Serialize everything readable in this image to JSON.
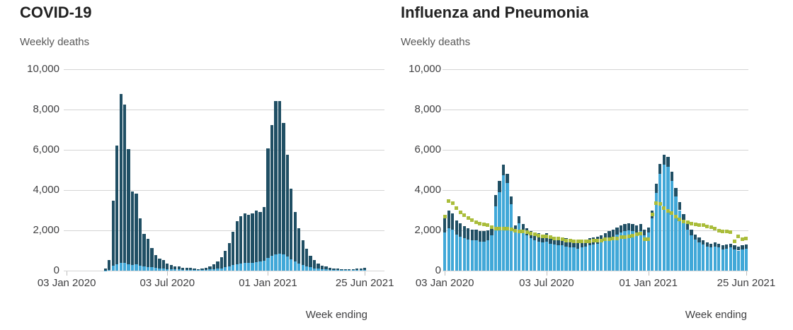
{
  "page_background": "#ffffff",
  "colors": {
    "bar_light_blue": "#41a8d8",
    "bar_dark_navy": "#204f64",
    "average_line_olive": "#aabd3b",
    "gridline": "#d4d4d4",
    "axis_text": "#3f3f41",
    "title_text": "#222222",
    "subtitle_text": "#585858"
  },
  "chart_data": [
    {
      "type": "bar",
      "stacked": true,
      "title": "COVID-19",
      "subtitle": "Weekly deaths",
      "ylabel": "Weekly deaths",
      "xlabel": "Week ending",
      "ylim": [
        0,
        10000
      ],
      "grid": true,
      "y_ticks": [
        0,
        2000,
        4000,
        6000,
        8000,
        10000
      ],
      "y_tick_labels": [
        "0",
        "2,000",
        "4,000",
        "6,000",
        "8,000",
        "10,000"
      ],
      "x_tick_labels": [
        "03 Jan 2020",
        "03 Jul 2020",
        "01 Jan 2021",
        "25 Jun 2021"
      ],
      "x_tick_weeks": [
        1,
        27,
        53,
        78
      ],
      "n_weeks": 78,
      "series": [
        {
          "name": "light-blue-bottom-segment",
          "color": "#41a8d8",
          "values": [
            0,
            0,
            0,
            0,
            0,
            0,
            0,
            0,
            0,
            0,
            10,
            40,
            250,
            330,
            400,
            390,
            330,
            290,
            300,
            240,
            200,
            190,
            160,
            130,
            110,
            100,
            80,
            75,
            60,
            55,
            45,
            45,
            40,
            35,
            30,
            35,
            40,
            55,
            70,
            90,
            120,
            160,
            210,
            270,
            320,
            350,
            370,
            380,
            400,
            430,
            440,
            480,
            640,
            730,
            820,
            850,
            800,
            690,
            560,
            450,
            360,
            280,
            220,
            160,
            120,
            90,
            70,
            55,
            40,
            35,
            30,
            28,
            25,
            25,
            28,
            30,
            32,
            35
          ]
        },
        {
          "name": "dark-navy-top-segment",
          "color": "#204f64",
          "values": [
            0,
            0,
            0,
            0,
            0,
            0,
            0,
            0,
            0,
            0,
            100,
            500,
            3225,
            5885,
            8360,
            7850,
            5705,
            3640,
            3510,
            2350,
            1620,
            1400,
            955,
            655,
            495,
            430,
            285,
            220,
            155,
            140,
            105,
            95,
            100,
            65,
            50,
            65,
            100,
            160,
            250,
            350,
            550,
            820,
            1170,
            1670,
            2145,
            2350,
            2465,
            2375,
            2435,
            2555,
            2470,
            2665,
            5415,
            6515,
            7600,
            7585,
            6520,
            5055,
            3520,
            2465,
            1745,
            1220,
            860,
            560,
            410,
            270,
            190,
            150,
            100,
            80,
            60,
            57,
            50,
            50,
            57,
            70,
            78,
            95
          ]
        }
      ]
    },
    {
      "type": "bar",
      "stacked": true,
      "title": "Influenza and Pneumonia",
      "subtitle": "Weekly deaths",
      "ylabel": "Weekly deaths",
      "xlabel": "Week ending",
      "ylim": [
        0,
        10000
      ],
      "grid": true,
      "y_ticks": [
        0,
        2000,
        4000,
        6000,
        8000,
        10000
      ],
      "y_tick_labels": [
        "0",
        "2,000",
        "4,000",
        "6,000",
        "8,000",
        "10,000"
      ],
      "x_tick_labels": [
        "03 Jan 2020",
        "03 Jul 2020",
        "01 Jan 2021",
        "25 Jun 2021"
      ],
      "x_tick_weeks": [
        1,
        27,
        53,
        78
      ],
      "n_weeks": 78,
      "series": [
        {
          "name": "light-blue-bottom-segment",
          "color": "#41a8d8",
          "values": [
            1900,
            2100,
            2050,
            1800,
            1700,
            1600,
            1550,
            1500,
            1500,
            1450,
            1450,
            1500,
            1750,
            3200,
            3900,
            4750,
            4350,
            3300,
            1950,
            2350,
            1950,
            1750,
            1600,
            1500,
            1450,
            1400,
            1450,
            1350,
            1300,
            1250,
            1250,
            1200,
            1150,
            1150,
            1100,
            1150,
            1200,
            1250,
            1300,
            1350,
            1400,
            1500,
            1600,
            1700,
            1800,
            1900,
            1950,
            2000,
            1950,
            1900,
            1950,
            1750,
            1900,
            2600,
            3850,
            4800,
            5250,
            5150,
            4450,
            3700,
            3000,
            2450,
            2050,
            1750,
            1550,
            1400,
            1300,
            1200,
            1150,
            1200,
            1150,
            1050,
            1100,
            1150,
            1050,
            1000,
            1050,
            1100
          ]
        },
        {
          "name": "dark-navy-top-segment",
          "color": "#204f64",
          "values": [
            850,
            900,
            800,
            700,
            650,
            600,
            550,
            550,
            550,
            500,
            500,
            500,
            450,
            550,
            550,
            500,
            450,
            400,
            300,
            350,
            350,
            350,
            350,
            400,
            400,
            400,
            400,
            400,
            400,
            400,
            400,
            400,
            400,
            400,
            400,
            350,
            350,
            350,
            350,
            350,
            350,
            350,
            350,
            350,
            350,
            350,
            350,
            350,
            350,
            350,
            350,
            300,
            250,
            400,
            450,
            500,
            500,
            500,
            450,
            400,
            400,
            350,
            350,
            300,
            250,
            250,
            200,
            200,
            200,
            200,
            200,
            200,
            200,
            200,
            200,
            200,
            200,
            200
          ]
        }
      ],
      "line_series": {
        "name": "olive-dotted-average-line",
        "color": "#aabd3b",
        "values": [
          2700,
          3450,
          3350,
          3100,
          2900,
          2750,
          2600,
          2500,
          2400,
          2350,
          2300,
          2250,
          2150,
          2100,
          2100,
          2100,
          2100,
          2050,
          2000,
          1950,
          1950,
          1900,
          1850,
          1800,
          1750,
          1700,
          1700,
          1650,
          1600,
          1600,
          1550,
          1500,
          1500,
          1450,
          1450,
          1450,
          1450,
          1450,
          1500,
          1500,
          1500,
          1550,
          1550,
          1600,
          1600,
          1650,
          1650,
          1700,
          1750,
          1800,
          1850,
          1550,
          1550,
          2800,
          3350,
          3300,
          3100,
          2950,
          2850,
          2700,
          2550,
          2450,
          2400,
          2350,
          2300,
          2250,
          2250,
          2200,
          2150,
          2100,
          2000,
          1950,
          1950,
          1900,
          1450,
          1700,
          1550,
          1600
        ]
      }
    }
  ]
}
